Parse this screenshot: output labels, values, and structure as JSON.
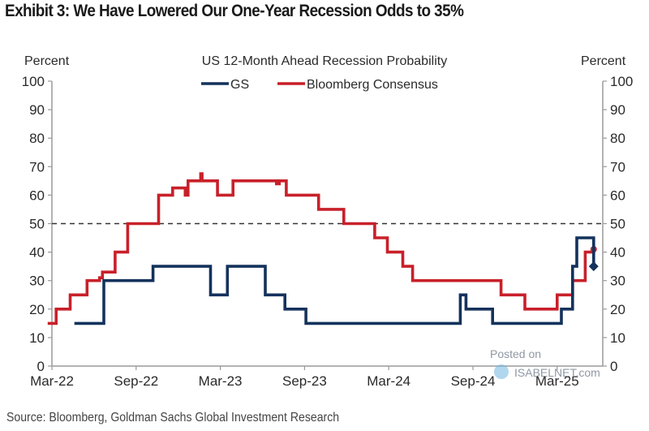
{
  "title": "Exhibit 3: We Have Lowered Our One-Year Recession Odds to 35%",
  "source": "Source: Bloomberg, Goldman Sachs Global Investment Research",
  "watermark": {
    "line1": "Posted on",
    "line2": "ISABELNET.com"
  },
  "colors": {
    "gs": "#14325c",
    "bloomberg": "#c8202a",
    "reference": "#333333",
    "axis": "#9a9a9a"
  },
  "chart_data": {
    "type": "line",
    "step": true,
    "title": "US 12-Month  Ahead  Recession Probability",
    "ylabel_left": "Percent",
    "ylabel_right": "Percent",
    "ylim": [
      0,
      100
    ],
    "yticks": [
      0,
      10,
      20,
      30,
      40,
      50,
      60,
      70,
      80,
      90,
      100
    ],
    "x_unit": "months since Mar-22",
    "xlim": [
      -0.4,
      39.2
    ],
    "xtick_labels": [
      "Mar-22",
      "Sep-22",
      "Mar-23",
      "Sep-23",
      "Mar-24",
      "Sep-24",
      "Mar-25"
    ],
    "xtick_values": [
      0,
      6,
      12,
      18,
      24,
      30,
      36
    ],
    "legend": {
      "placement": "top-center",
      "entries": [
        "GS",
        "Bloomberg Consensus"
      ]
    },
    "reference_line": {
      "y": 50,
      "style": "dashed"
    },
    "series": [
      {
        "name": "GS",
        "points": [
          [
            1.6,
            15
          ],
          [
            3.7,
            15
          ],
          [
            3.7,
            30
          ],
          [
            7.2,
            30
          ],
          [
            7.2,
            35
          ],
          [
            11.3,
            35
          ],
          [
            11.3,
            25
          ],
          [
            12.5,
            25
          ],
          [
            12.5,
            35
          ],
          [
            15.2,
            35
          ],
          [
            15.2,
            25
          ],
          [
            16.6,
            25
          ],
          [
            16.6,
            20
          ],
          [
            18.1,
            20
          ],
          [
            18.1,
            15
          ],
          [
            29.1,
            15
          ],
          [
            29.1,
            25
          ],
          [
            29.5,
            25
          ],
          [
            29.5,
            20
          ],
          [
            31.4,
            20
          ],
          [
            31.4,
            15
          ],
          [
            36.3,
            15
          ],
          [
            36.3,
            20
          ],
          [
            37.1,
            20
          ],
          [
            37.1,
            35
          ],
          [
            37.4,
            35
          ],
          [
            37.4,
            45
          ],
          [
            38.6,
            45
          ],
          [
            38.6,
            35
          ]
        ],
        "end_marker": "diamond"
      },
      {
        "name": "Bloomberg Consensus",
        "points": [
          [
            -0.3,
            15
          ],
          [
            0.3,
            15
          ],
          [
            0.3,
            20
          ],
          [
            1.3,
            20
          ],
          [
            1.3,
            25
          ],
          [
            2.5,
            25
          ],
          [
            2.5,
            30
          ],
          [
            3.4,
            30
          ],
          [
            3.4,
            31
          ],
          [
            3.6,
            31
          ],
          [
            3.6,
            33
          ],
          [
            4.5,
            33
          ],
          [
            4.5,
            40
          ],
          [
            5.4,
            40
          ],
          [
            5.4,
            50
          ],
          [
            7.6,
            50
          ],
          [
            7.6,
            60
          ],
          [
            8.6,
            60
          ],
          [
            8.6,
            62.5
          ],
          [
            9.5,
            62.5
          ],
          [
            9.5,
            60
          ],
          [
            9.7,
            60
          ],
          [
            9.7,
            65
          ],
          [
            10.6,
            65
          ],
          [
            10.6,
            67.5
          ],
          [
            10.7,
            67.5
          ],
          [
            10.7,
            65
          ],
          [
            11.8,
            65
          ],
          [
            11.8,
            60
          ],
          [
            12.9,
            60
          ],
          [
            12.9,
            65
          ],
          [
            16.0,
            65
          ],
          [
            16.0,
            64
          ],
          [
            16.2,
            64
          ],
          [
            16.2,
            65
          ],
          [
            16.7,
            65
          ],
          [
            16.7,
            60
          ],
          [
            19.0,
            60
          ],
          [
            19.0,
            55
          ],
          [
            20.8,
            55
          ],
          [
            20.8,
            50
          ],
          [
            23.0,
            50
          ],
          [
            23.0,
            45
          ],
          [
            23.9,
            45
          ],
          [
            23.9,
            40
          ],
          [
            25.0,
            40
          ],
          [
            25.0,
            35
          ],
          [
            25.7,
            35
          ],
          [
            25.7,
            30
          ],
          [
            32.0,
            30
          ],
          [
            32.0,
            25
          ],
          [
            33.7,
            25
          ],
          [
            33.7,
            20
          ],
          [
            36.0,
            20
          ],
          [
            36.0,
            25
          ],
          [
            37.1,
            25
          ],
          [
            37.1,
            30
          ],
          [
            38.0,
            30
          ],
          [
            38.0,
            40
          ],
          [
            38.6,
            40
          ],
          [
            38.6,
            41
          ]
        ],
        "end_marker": "dot"
      }
    ]
  }
}
